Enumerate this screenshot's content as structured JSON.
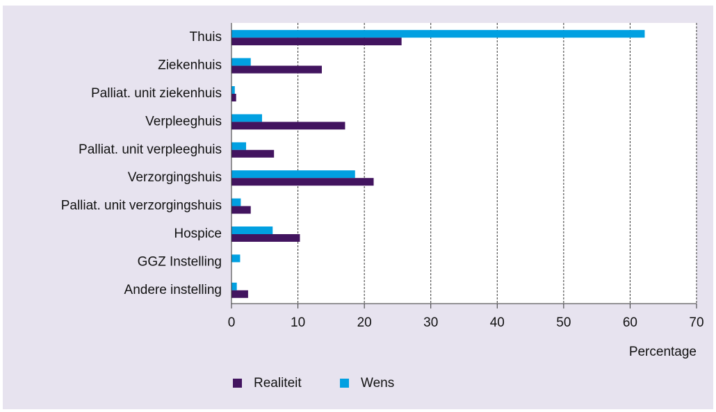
{
  "chart_data": {
    "type": "bar",
    "orientation": "horizontal",
    "x_axis_label": "Percentage",
    "categories": [
      "Thuis",
      "Ziekenhuis",
      "Palliat. unit ziekenhuis",
      "Verpleeghuis",
      "Palliat. unit verpleeghuis",
      "Verzorgingshuis",
      "Palliat. unit verzorgingshuis",
      "Hospice",
      "GGZ Instelling",
      "Andere instelling"
    ],
    "series": [
      {
        "name": "Realiteit",
        "color": "#42145f",
        "values": [
          25.6,
          13.6,
          0.7,
          17.1,
          6.4,
          21.4,
          2.9,
          10.3,
          0,
          2.5
        ]
      },
      {
        "name": "Wens",
        "color": "#01a0e1",
        "values": [
          62.2,
          2.9,
          0.5,
          4.6,
          2.2,
          18.6,
          1.4,
          6.2,
          1.3,
          0.8
        ]
      }
    ],
    "xlim": [
      0,
      70
    ],
    "xticks": [
      0,
      10,
      20,
      30,
      40,
      50,
      60,
      70
    ],
    "grid": true,
    "legend": "bottom"
  }
}
